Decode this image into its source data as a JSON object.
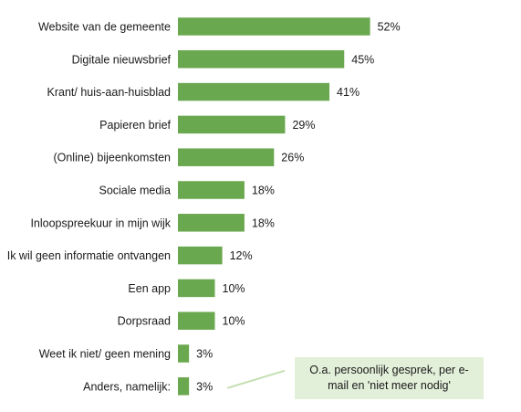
{
  "chart_data": {
    "type": "bar",
    "orientation": "horizontal",
    "categories": [
      "Website van de gemeente",
      "Digitale nieuwsbrief",
      "Krant/ huis-aan-huisblad",
      "Papieren brief",
      "(Online) bijeenkomsten",
      "Sociale media",
      "Inloopspreekuur in mijn wijk",
      "Ik wil geen informatie ontvangen",
      "Een app",
      "Dorpsraad",
      "Weet ik niet/ geen mening",
      "Anders, namelijk:"
    ],
    "values": [
      52,
      45,
      41,
      29,
      26,
      18,
      18,
      12,
      10,
      10,
      3,
      3
    ],
    "value_labels": [
      "52%",
      "45%",
      "41%",
      "29%",
      "26%",
      "18%",
      "18%",
      "12%",
      "10%",
      "10%",
      "3%",
      "3%"
    ],
    "unit": "%",
    "xlim": [
      0,
      100
    ],
    "grid": false,
    "legend": "none",
    "bar_color": "#6aa84f",
    "annotation": {
      "target_category": "Anders, namelijk:",
      "text": "O.a. persoonlijk gesprek, per e-mail en 'niet meer nodig'",
      "box_color": "#e2efd9",
      "leader_color": "#c5dfb4"
    }
  }
}
